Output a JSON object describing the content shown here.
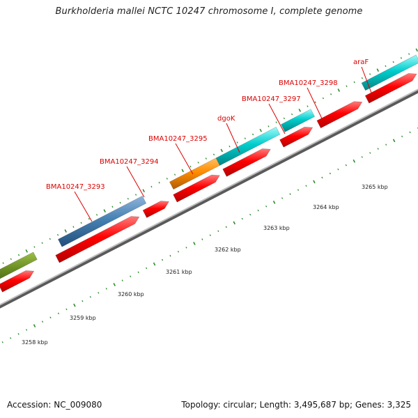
{
  "map": {
    "title": "Burkholderia mallei NCTC 10247 chromosome I, complete genome",
    "accession": "Accession: NC_009080",
    "summary": "Topology: circular; Length: 3,495,687 bp; Genes: 3,325"
  },
  "colors": {
    "backbone": "#8c8c8c",
    "tick": "#2e8b2e",
    "label": "#dd0000",
    "leader": "#dd0000",
    "reverse_gene": "#ff0000",
    "olive": "#6b8e23",
    "steelblue": "#4682b4",
    "orange": "#ff8c00",
    "turquoise": "#00cdcd"
  },
  "scale": {
    "kbp_labels": [
      "3258 kbp",
      "3259 kbp",
      "3260 kbp",
      "3261 kbp",
      "3262 kbp",
      "3263 kbp",
      "3264 kbp",
      "3265 kbp"
    ]
  },
  "genes": [
    {
      "name": "BMA10247_3293",
      "color": "steelblue",
      "strand": "forward"
    },
    {
      "name": "BMA10247_3294",
      "color": "red",
      "strand": "reverse"
    },
    {
      "name": "BMA10247_3295",
      "color": "orange",
      "strand": "forward"
    },
    {
      "name": "dgoK",
      "color": "turquoise",
      "strand": "forward"
    },
    {
      "name": "BMA10247_3297",
      "color": "turquoise",
      "strand": "forward"
    },
    {
      "name": "BMA10247_3298",
      "color": "red",
      "strand": "reverse"
    },
    {
      "name": "araF",
      "color": "turquoise",
      "strand": "forward"
    }
  ]
}
